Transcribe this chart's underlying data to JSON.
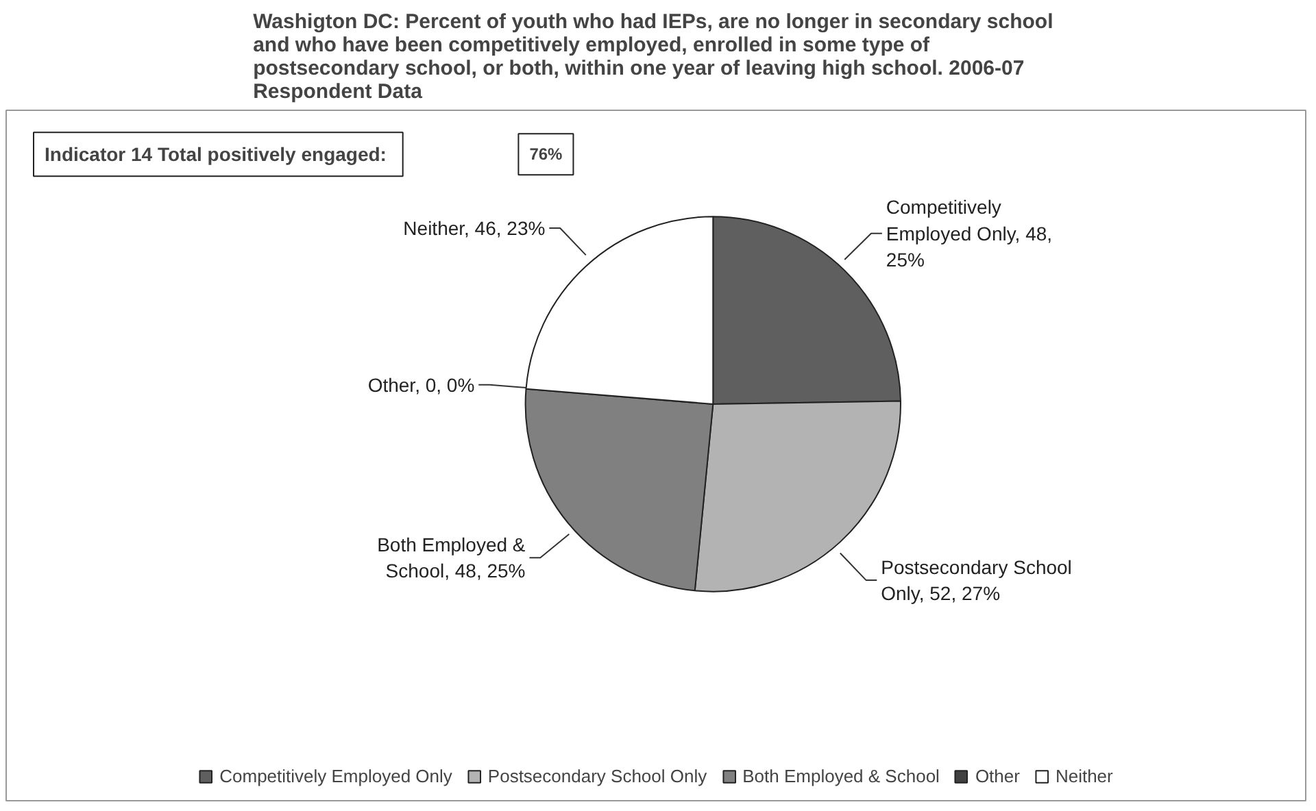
{
  "chart_data": {
    "type": "pie",
    "title": "Washigton DC:  Percent of youth who had IEPs, are no longer in secondary school\nand who have been competitively employed, enrolled in some type of\npostsecondary school, or both, within one year of leaving high school.    2006-07\nRespondent Data",
    "categories": [
      "Competitively Employed Only",
      "Postsecondary School Only",
      "Both Employed & School",
      "Other",
      "Neither"
    ],
    "values": [
      48,
      52,
      48,
      0,
      46
    ],
    "colors": [
      "#5f5f5f",
      "#b3b3b3",
      "#808080",
      "#404040",
      "#ffffff"
    ],
    "value_labels": [
      "Competitively Employed Only, 48, 25%",
      "Postsecondary School Only, 52, 27%",
      "Both Employed & School, 48, 25%",
      "Other, 0, 0%",
      "Neither, 46, 23%"
    ],
    "annotations": [
      "Indicator 14 Total  positively engaged:",
      "76%"
    ],
    "legend": "bottom"
  }
}
